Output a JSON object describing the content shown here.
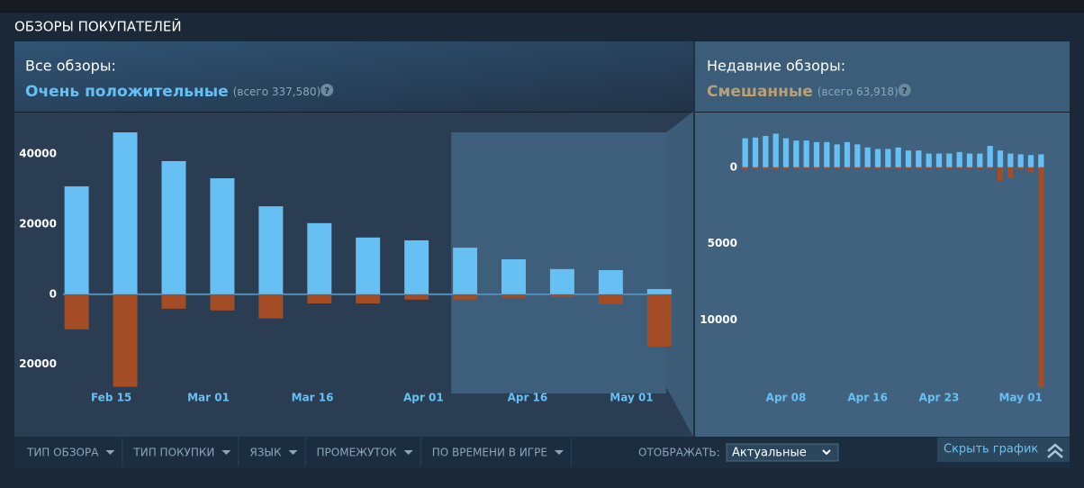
{
  "header": {
    "title": "ОБЗОРЫ ПОКУПАТЕЛЕЙ"
  },
  "summaries": [
    {
      "label": "Все обзоры:",
      "rating": "Очень положительные",
      "count": "(всего 337,580)",
      "help": "?",
      "rating_color": "#66c0f4"
    },
    {
      "label": "Недавние обзоры:",
      "rating": "Смешанные",
      "count": "(всего 63,918)",
      "help": "?",
      "rating_color": "#b9a074"
    }
  ],
  "chart_data": [
    {
      "type": "bar",
      "x": [
        41,
        48,
        55,
        62,
        69,
        76,
        83,
        90,
        97,
        104,
        111,
        118,
        125
      ],
      "series": [
        {
          "color": "#66c0f4",
          "values": [
            30800,
            46200,
            38000,
            33100,
            25100,
            20300,
            16200,
            15400,
            13300,
            10000,
            7200,
            6900,
            1500
          ]
        },
        {
          "color": "#a34c25",
          "values": [
            -10000,
            -26400,
            -4100,
            -4600,
            -6900,
            -2600,
            -2600,
            -1500,
            -1500,
            -1000,
            -800,
            -2800,
            -14900
          ]
        }
      ],
      "xlim": [
        38,
        126
      ],
      "xticks": [
        {
          "value": 46,
          "label": "Feb 15"
        },
        {
          "value": 60,
          "label": "Mar 01"
        },
        {
          "value": 75,
          "label": "Mar 16"
        },
        {
          "value": 91,
          "label": "Apr 01"
        },
        {
          "value": 106,
          "label": "Apr 16"
        },
        {
          "value": 121,
          "label": "May 01"
        }
      ],
      "ylim": [
        -27000,
        48000
      ],
      "yticks": [
        {
          "value": -20000,
          "label": "20000"
        },
        0,
        20000,
        40000
      ],
      "highlight_xlim": [
        95,
        126
      ]
    },
    {
      "type": "bar",
      "x": [
        94,
        95,
        96,
        97,
        98,
        99,
        100,
        101,
        102,
        103,
        104,
        105,
        106,
        107,
        108,
        109,
        110,
        111,
        112,
        113,
        114,
        115,
        116,
        117,
        118,
        119,
        120,
        121,
        122,
        123
      ],
      "series": [
        {
          "color": "#66c0f4",
          "values": [
            1900,
            1950,
            2050,
            2200,
            1900,
            1750,
            1750,
            1650,
            1650,
            1500,
            1650,
            1500,
            1300,
            1200,
            1200,
            1300,
            1100,
            1100,
            900,
            900,
            900,
            1000,
            900,
            900,
            1400,
            1100,
            900,
            850,
            800,
            850
          ]
        },
        {
          "color": "#a34c25",
          "values": [
            -150,
            -120,
            -130,
            -150,
            -120,
            -110,
            -100,
            -110,
            -120,
            -100,
            -110,
            -100,
            -90,
            -100,
            -90,
            -90,
            -80,
            -90,
            -80,
            -80,
            -90,
            -80,
            -80,
            -80,
            -100,
            -900,
            -700,
            -150,
            -300,
            -14400
          ]
        }
      ],
      "xlim": [
        93.5,
        123.5
      ],
      "xticks": [
        {
          "value": 98,
          "label": "Apr 08"
        },
        {
          "value": 106,
          "label": "Apr 16"
        },
        {
          "value": 113,
          "label": "Apr 23"
        },
        {
          "value": 121,
          "label": "May 01"
        }
      ],
      "ylim": [
        -14500,
        2700
      ],
      "yticks": [
        {
          "value": -10000,
          "label": "10000"
        },
        {
          "value": -5000,
          "label": "5000"
        },
        0
      ]
    }
  ],
  "filters": {
    "items": [
      "ТИП ОБЗОРА",
      "ТИП ПОКУПКИ",
      "ЯЗЫК",
      "ПРОМЕЖУТОК",
      "ПО ВРЕМЕНИ В ИГРЕ"
    ],
    "display_label": "ОТОБРАЖАТЬ:",
    "display_value": "Актуальные",
    "hide_button": "Скрыть график"
  }
}
